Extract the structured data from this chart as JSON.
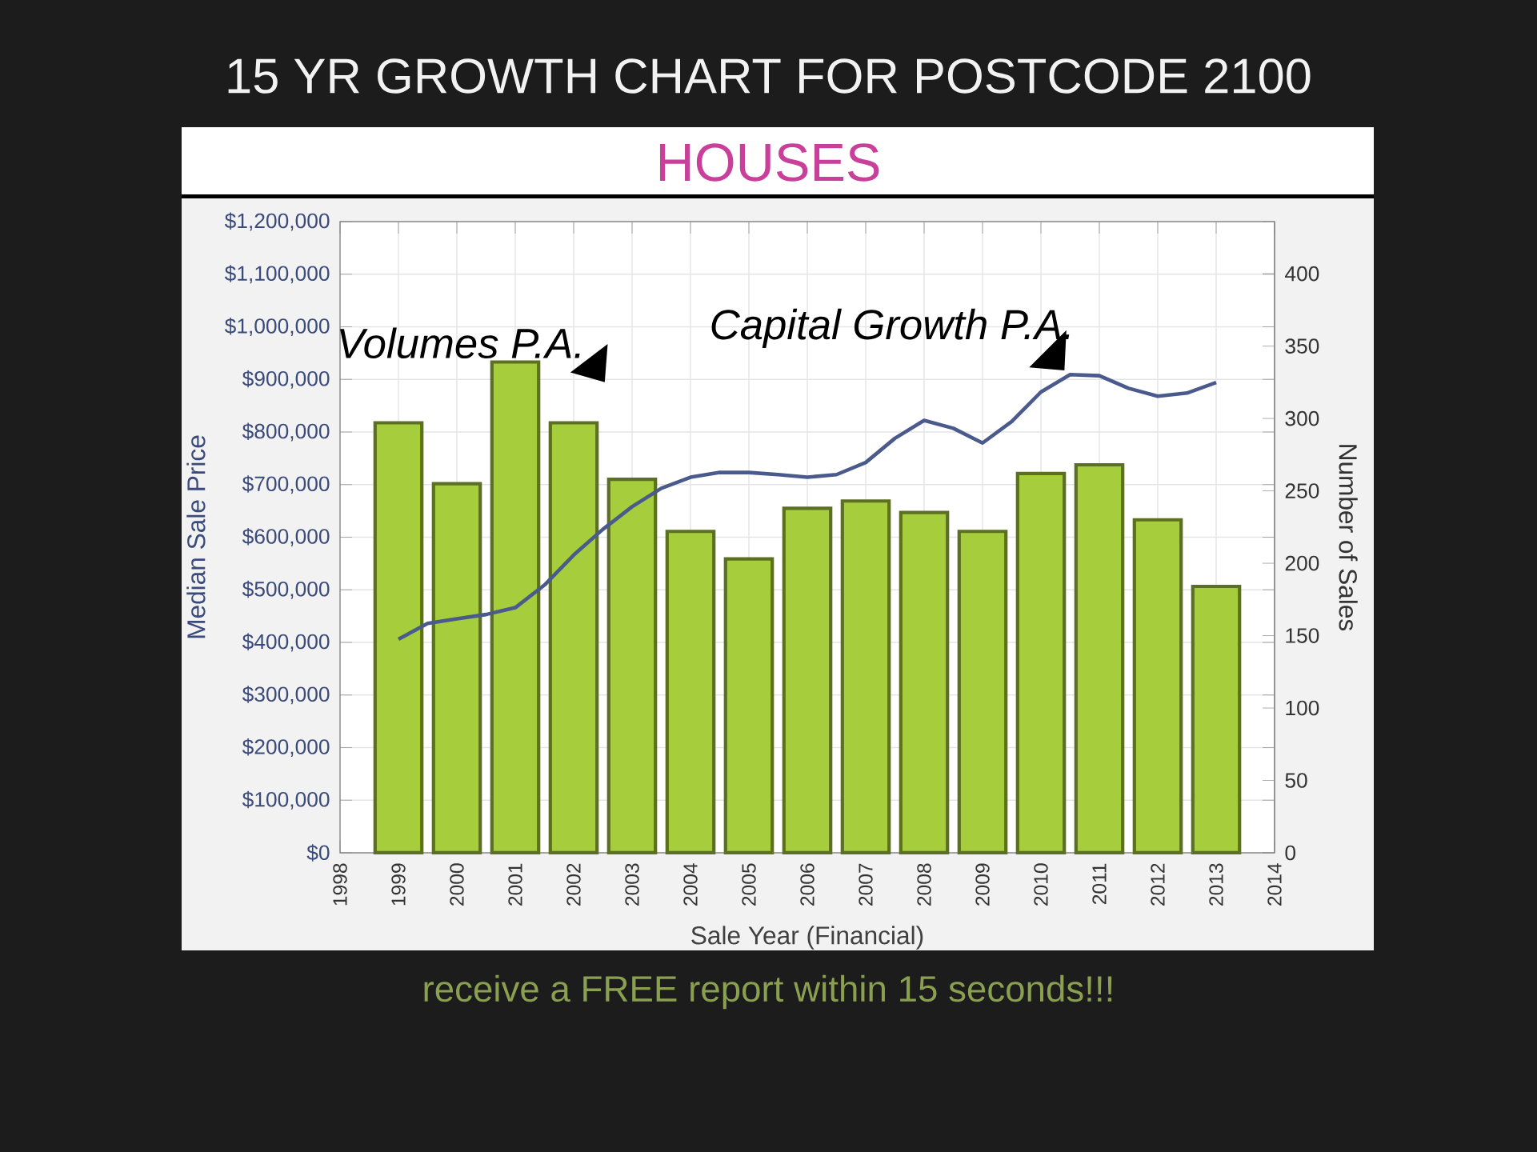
{
  "chart_data": {
    "type": "bar",
    "title": "15 YR GROWTH CHART FOR POSTCODE 2100",
    "subtitle": "HOUSES",
    "xlabel": "Sale Year (Financial)",
    "ylabel": "Median Sale Price",
    "y2label": "Number of Sales",
    "annotations": [
      "Volumes P.A.",
      "Capital Growth P.A.",
      "receive a FREE report within 15 seconds!!!"
    ],
    "x": [
      1999,
      2000,
      2001,
      2002,
      2003,
      2004,
      2005,
      2006,
      2007,
      2008,
      2009,
      2010,
      2011,
      2012,
      2013
    ],
    "series": [
      {
        "axis": "y2",
        "color": "#a5cd3c",
        "values": [
          297,
          255,
          339,
          297,
          258,
          222,
          203,
          238,
          243,
          235,
          222,
          262,
          268,
          230,
          184
        ]
      },
      {
        "type": "line",
        "color": "#4a5a8c",
        "x": [
          1999,
          1999.5,
          2000,
          2000.5,
          2001,
          2001.5,
          2002,
          2002.5,
          2003,
          2003.5,
          2004,
          2004.5,
          2005,
          2005.5,
          2006,
          2006.5,
          2007,
          2007.5,
          2008,
          2008.5,
          2009,
          2009.5,
          2010,
          2010.5,
          2011,
          2011.5,
          2012,
          2012.5,
          2013
        ],
        "values": [
          406000,
          436000,
          445000,
          453000,
          466000,
          509000,
          566000,
          615000,
          658000,
          693000,
          714000,
          723000,
          723000,
          719000,
          714000,
          719000,
          742000,
          788000,
          822000,
          807000,
          779000,
          820000,
          876000,
          909000,
          907000,
          883000,
          868000,
          874000,
          894000
        ]
      }
    ],
    "xlim": [
      1998,
      2014
    ],
    "xticks": [
      1998,
      1999,
      2000,
      2001,
      2002,
      2003,
      2004,
      2005,
      2006,
      2007,
      2008,
      2009,
      2010,
      2011,
      2012,
      2013,
      2014
    ],
    "ylim": [
      0,
      1200000
    ],
    "yticks": [
      {
        "value": 0,
        "label": "$0"
      },
      {
        "value": 100000,
        "label": "$100,000"
      },
      {
        "value": 200000,
        "label": "$200,000"
      },
      {
        "value": 300000,
        "label": "$300,000"
      },
      {
        "value": 400000,
        "label": "$400,000"
      },
      {
        "value": 500000,
        "label": "$500,000"
      },
      {
        "value": 600000,
        "label": "$600,000"
      },
      {
        "value": 700000,
        "label": "$700,000"
      },
      {
        "value": 800000,
        "label": "$800,000"
      },
      {
        "value": 900000,
        "label": "$900,000"
      },
      {
        "value": 1000000,
        "label": "$1,000,000"
      },
      {
        "value": 1100000,
        "label": "$1,100,000"
      },
      {
        "value": 1200000,
        "label": "$1,200,000"
      }
    ],
    "y2lim": [
      0,
      436
    ],
    "y2ticks": [
      0,
      50,
      100,
      150,
      200,
      250,
      300,
      350,
      400
    ],
    "grid": true
  }
}
